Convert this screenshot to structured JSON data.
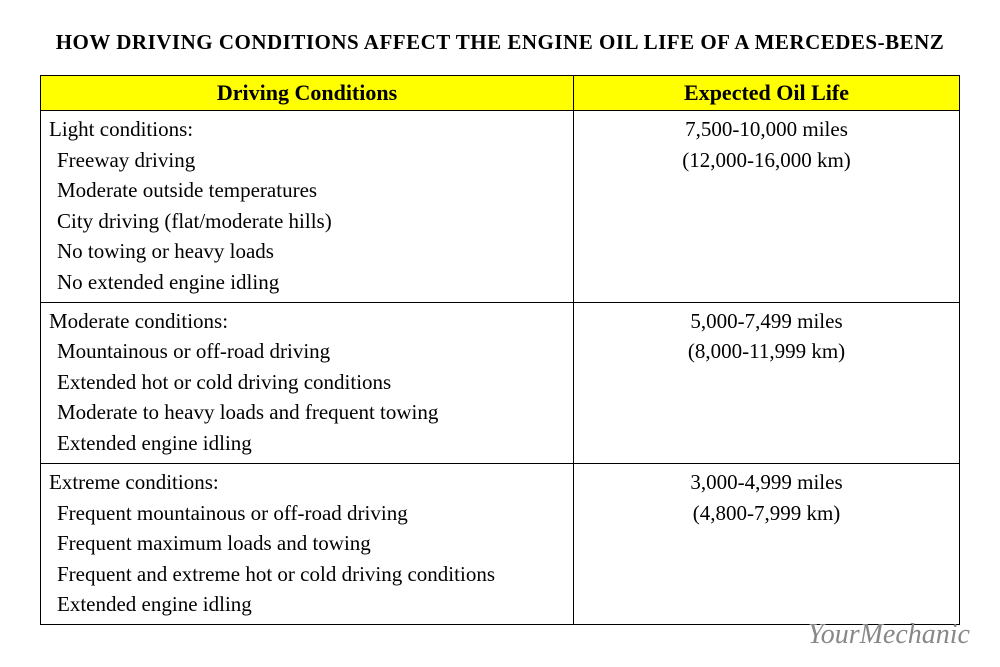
{
  "title": "HOW DRIVING CONDITIONS AFFECT THE ENGINE OIL LIFE OF A MERCEDES-BENZ",
  "table": {
    "header_bg": "#ffff00",
    "border_color": "#000000",
    "columns": [
      "Driving Conditions",
      "Expected Oil Life"
    ],
    "rows": [
      {
        "heading": "Light conditions:",
        "items": [
          "Freeway driving",
          "Moderate outside temperatures",
          "City driving (flat/moderate hills)",
          "No towing or heavy loads",
          "No extended engine idling"
        ],
        "oil_miles": "7,500-10,000 miles",
        "oil_km": "(12,000-16,000 km)"
      },
      {
        "heading": "Moderate conditions:",
        "items": [
          "Mountainous or off-road driving",
          "Extended hot or cold driving conditions",
          "Moderate to heavy loads and frequent towing",
          "Extended engine idling"
        ],
        "oil_miles": "5,000-7,499 miles",
        "oil_km": "(8,000-11,999 km)"
      },
      {
        "heading": "Extreme conditions:",
        "items": [
          "Frequent mountainous or off-road driving",
          "Frequent maximum loads and towing",
          "Frequent and extreme hot or cold driving conditions",
          "Extended engine idling"
        ],
        "oil_miles": "3,000-4,999 miles",
        "oil_km": "(4,800-7,999 km)"
      }
    ]
  },
  "watermark": "YourMechanic"
}
